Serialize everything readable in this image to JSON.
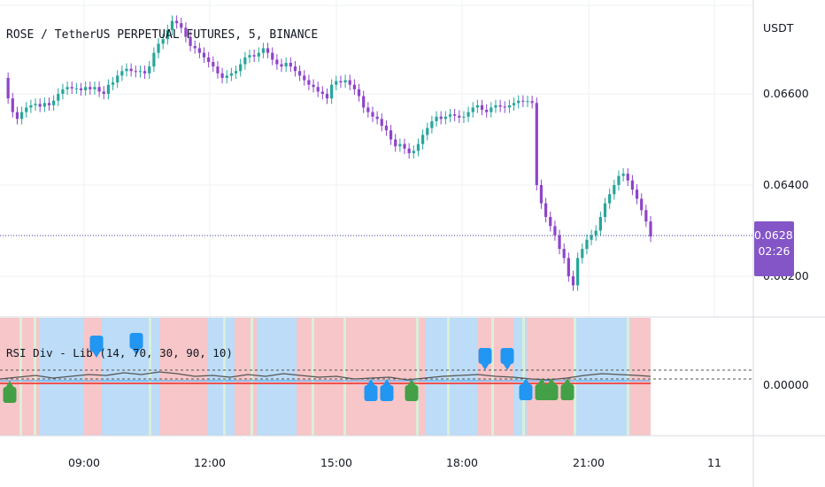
{
  "chart_header": {
    "symbol_title": "ROSE / TetherUS PERPETUAL FUTURES, 5, BINANCE",
    "currency": "USDT"
  },
  "price_axis": {
    "labels": [
      "0.06600",
      "0.06400",
      "0.06200"
    ]
  },
  "last_price": {
    "value": "0.06287",
    "countdown": "02:26"
  },
  "indicator": {
    "title": "RSI Div - Lib (14, 70, 30, 90, 10)",
    "axis_label": "0.00000"
  },
  "time_axis": {
    "labels": [
      "09:00",
      "12:00",
      "15:00",
      "18:00",
      "21:00",
      "11"
    ]
  },
  "colors": {
    "up_candle": "#26a69a",
    "down_candle": "#8e44c9",
    "bear_zone": "#f7c6c8",
    "bull_zone": "#bcdcf7",
    "bull_marker": "#43a047",
    "blue_marker": "#2196f3",
    "price_line": "#3f3fa8"
  },
  "chart_data": {
    "type": "candlestick",
    "interval": "5",
    "series": [
      {
        "values": [
          0.06635,
          0.0659,
          0.0656,
          0.06545,
          0.0656,
          0.0657,
          0.06575,
          0.06578,
          0.06572,
          0.0658,
          0.06575,
          0.06585,
          0.066,
          0.0661,
          0.06615,
          0.06612,
          0.06612,
          0.06608,
          0.06615,
          0.0661,
          0.06615,
          0.06605,
          0.066,
          0.0662,
          0.06625,
          0.0664,
          0.0665,
          0.06655,
          0.0665,
          0.06648,
          0.0665,
          0.06645,
          0.0666,
          0.0669,
          0.0671,
          0.0672,
          0.0674,
          0.0676,
          0.06755,
          0.06745,
          0.06725,
          0.06705,
          0.067,
          0.0669,
          0.0668,
          0.0667,
          0.0666,
          0.06645,
          0.06635,
          0.0664,
          0.06645,
          0.0665,
          0.06665,
          0.0668,
          0.06685,
          0.06682,
          0.0669,
          0.067,
          0.0669,
          0.06675,
          0.06665,
          0.0666,
          0.06668,
          0.0666,
          0.0665,
          0.0664,
          0.0663,
          0.0662,
          0.06615,
          0.06605,
          0.066,
          0.0659,
          0.0662,
          0.06628,
          0.06625,
          0.0663,
          0.0662,
          0.0661,
          0.06595,
          0.0657,
          0.0656,
          0.0655,
          0.06545,
          0.0653,
          0.0652,
          0.065,
          0.06485,
          0.0649,
          0.0648,
          0.0647,
          0.06475,
          0.0649,
          0.0651,
          0.06525,
          0.0654,
          0.0655,
          0.06545,
          0.0655,
          0.06555,
          0.06552,
          0.06548,
          0.0655,
          0.0656,
          0.0657,
          0.06575,
          0.06565,
          0.0656,
          0.0657,
          0.06575,
          0.06572,
          0.0657,
          0.06575,
          0.0658,
          0.06585,
          0.06583,
          0.06584,
          0.0658,
          0.064,
          0.0636,
          0.0633,
          0.0631,
          0.0629,
          0.0626,
          0.0624,
          0.062,
          0.0618,
          0.0624,
          0.0626,
          0.0628,
          0.0629,
          0.063,
          0.0633,
          0.0636,
          0.0638,
          0.064,
          0.0642,
          0.06425,
          0.0641,
          0.0639,
          0.0637,
          0.06345,
          0.0632,
          0.06287
        ]
      }
    ],
    "x_ticks": [
      "09:00",
      "12:00",
      "15:00",
      "18:00",
      "21:00",
      "11"
    ],
    "y_ticks": [
      "0.06600",
      "0.06400",
      "0.06200"
    ],
    "last_value": 0.06287
  }
}
